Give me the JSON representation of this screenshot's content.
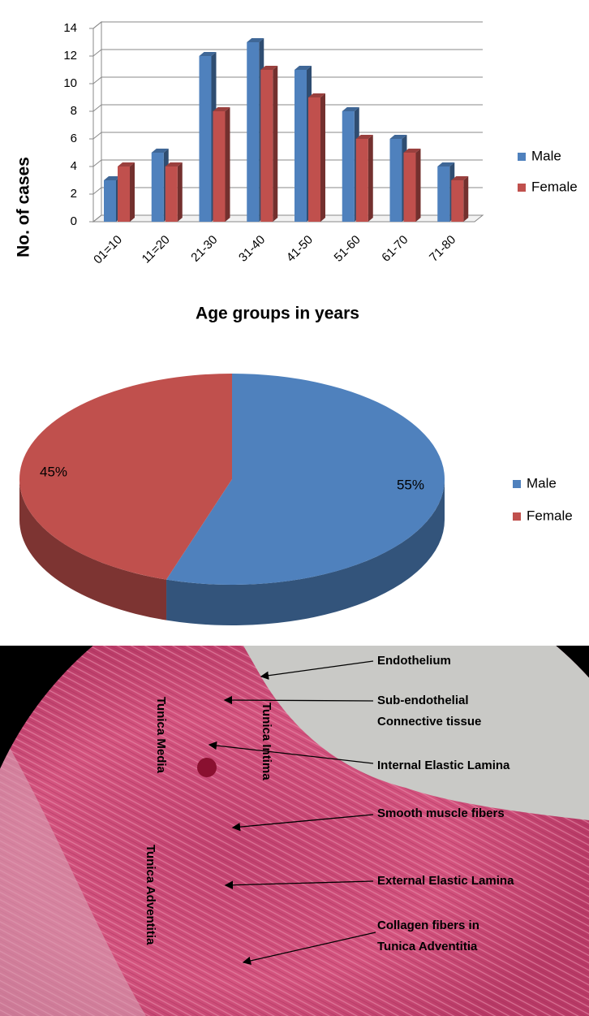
{
  "chart_data": [
    {
      "type": "bar",
      "y_label": "No. of cases",
      "x_label": "Age groups  in years",
      "categories": [
        "01=10",
        "11=20",
        "21-30",
        "31-40",
        "41-50",
        "51-60",
        "61-70",
        "71-80"
      ],
      "series": [
        {
          "name": "Male",
          "color": "#4f81bd",
          "values": [
            3,
            5,
            12,
            13,
            11,
            8,
            6,
            4
          ]
        },
        {
          "name": "Female",
          "color": "#c0504d",
          "values": [
            4,
            4,
            8,
            11,
            9,
            6,
            5,
            3
          ]
        }
      ],
      "ylim": [
        0,
        14
      ],
      "yticks": [
        0,
        2,
        4,
        6,
        8,
        10,
        12,
        14
      ],
      "grid": true,
      "legend": "right"
    },
    {
      "type": "pie",
      "categories": [
        "Male",
        "Female"
      ],
      "values": [
        55,
        45
      ],
      "value_labels": [
        "55%",
        "45%"
      ],
      "colors": [
        "#4f81bd",
        "#c0504d"
      ],
      "legend": "right"
    }
  ],
  "micrograph": {
    "annotations": [
      [
        "Endothelium"
      ],
      [
        "Sub-endothelial",
        "Connective tissue"
      ],
      [
        "Internal Elastic Lamina"
      ],
      [
        "Smooth muscle fibers"
      ],
      [
        "External Elastic Lamina"
      ],
      [
        "Collagen fibers in",
        "Tunica Adventitia"
      ]
    ],
    "layers": [
      "Tunica Media",
      "Tunica Intima",
      "Tunica Adventitia"
    ]
  }
}
